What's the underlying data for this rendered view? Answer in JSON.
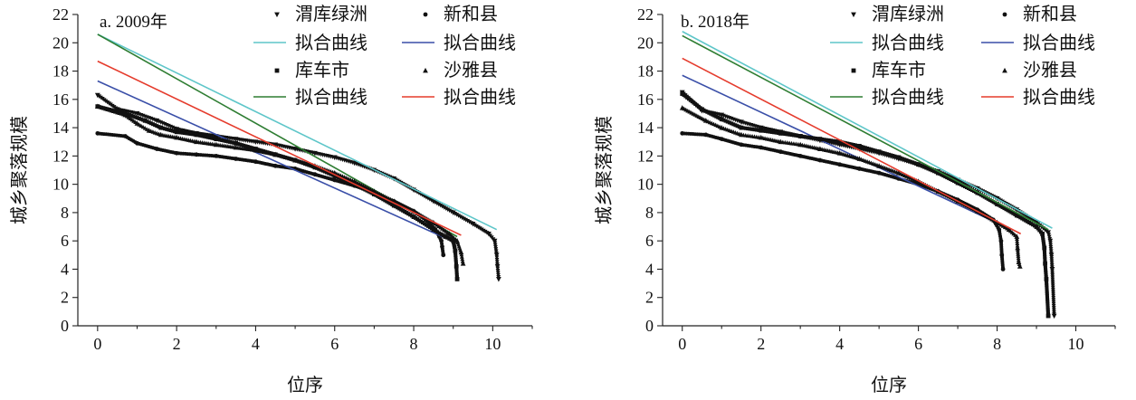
{
  "chart_data": [
    {
      "type": "scatter",
      "title": "a. 2009年",
      "xlabel": "位序",
      "ylabel": "城乡聚落规模",
      "xlim": [
        -0.5,
        11
      ],
      "ylim": [
        0,
        22
      ],
      "xticks": [
        0,
        2,
        4,
        6,
        8,
        10
      ],
      "yticks": [
        0,
        2,
        4,
        6,
        8,
        10,
        12,
        14,
        16,
        18,
        20,
        22
      ],
      "legend_position": "top-right",
      "series": [
        {
          "name": "渭库绿洲",
          "kind": "points",
          "marker": "triangle-down",
          "points": [
            [
              0,
              16.3
            ],
            [
              0.5,
              15.3
            ],
            [
              1,
              15.0
            ],
            [
              1.5,
              14.5
            ],
            [
              2,
              13.9
            ],
            [
              2.5,
              13.6
            ],
            [
              3,
              13.4
            ],
            [
              3.5,
              13.2
            ],
            [
              4,
              13.0
            ],
            [
              4.5,
              12.8
            ],
            [
              5,
              12.5
            ],
            [
              5.5,
              12.2
            ],
            [
              6,
              11.9
            ],
            [
              6.5,
              11.5
            ],
            [
              7,
              11.0
            ],
            [
              7.5,
              10.4
            ],
            [
              8,
              9.6
            ],
            [
              8.5,
              8.8
            ],
            [
              9,
              8.0
            ],
            [
              9.5,
              7.2
            ],
            [
              9.9,
              6.5
            ],
            [
              10.05,
              6.0
            ],
            [
              10.1,
              5.0
            ],
            [
              10.12,
              4.2
            ],
            [
              10.15,
              3.3
            ]
          ]
        },
        {
          "name": "拟合曲线",
          "kind": "fit",
          "color": "#5ec6c9",
          "x": [
            0,
            10.1
          ],
          "y": [
            20.6,
            6.8
          ]
        },
        {
          "name": "新和县",
          "kind": "points",
          "marker": "dot",
          "points": [
            [
              0,
              13.6
            ],
            [
              0.7,
              13.4
            ],
            [
              1,
              12.9
            ],
            [
              1.5,
              12.5
            ],
            [
              2,
              12.2
            ],
            [
              2.5,
              12.1
            ],
            [
              3,
              12.0
            ],
            [
              3.5,
              11.8
            ],
            [
              4,
              11.6
            ],
            [
              4.5,
              11.3
            ],
            [
              5,
              11.1
            ],
            [
              5.5,
              10.7
            ],
            [
              6,
              10.3
            ],
            [
              6.5,
              9.9
            ],
            [
              7,
              9.4
            ],
            [
              7.5,
              8.8
            ],
            [
              8,
              8.1
            ],
            [
              8.3,
              7.5
            ],
            [
              8.55,
              6.8
            ],
            [
              8.65,
              6.3
            ],
            [
              8.7,
              6.0
            ],
            [
              8.72,
              5.6
            ],
            [
              8.75,
              5.0
            ]
          ]
        },
        {
          "name": "拟合曲线",
          "kind": "fit",
          "color": "#3a4fa8",
          "x": [
            0,
            8.8
          ],
          "y": [
            17.3,
            6.2
          ]
        },
        {
          "name": "库车市",
          "kind": "points",
          "marker": "square",
          "points": [
            [
              0,
              15.5
            ],
            [
              0.7,
              15.0
            ],
            [
              1.2,
              14.5
            ],
            [
              1.6,
              14.0
            ],
            [
              2,
              13.7
            ],
            [
              2.5,
              13.5
            ],
            [
              3,
              13.2
            ],
            [
              3.5,
              12.9
            ],
            [
              4,
              12.5
            ],
            [
              4.5,
              12.1
            ],
            [
              5,
              11.7
            ],
            [
              5.5,
              11.2
            ],
            [
              6,
              10.6
            ],
            [
              6.5,
              10.0
            ],
            [
              7,
              9.3
            ],
            [
              7.5,
              8.5
            ],
            [
              8,
              7.7
            ],
            [
              8.5,
              6.8
            ],
            [
              8.8,
              6.3
            ],
            [
              9.0,
              6.0
            ],
            [
              9.05,
              5.3
            ],
            [
              9.08,
              4.2
            ],
            [
              9.1,
              3.3
            ]
          ]
        },
        {
          "name": "拟合曲线",
          "kind": "fit",
          "color": "#2e7d32",
          "x": [
            0,
            9.1
          ],
          "y": [
            20.6,
            6.3
          ]
        },
        {
          "name": "沙雅县",
          "kind": "points",
          "marker": "triangle-up",
          "points": [
            [
              0,
              15.5
            ],
            [
              0.7,
              14.9
            ],
            [
              1,
              14.3
            ],
            [
              1.3,
              13.8
            ],
            [
              1.6,
              13.5
            ],
            [
              2,
              13.3
            ],
            [
              2.5,
              13.0
            ],
            [
              3,
              12.8
            ],
            [
              3.5,
              12.6
            ],
            [
              4,
              12.4
            ],
            [
              4.5,
              12.1
            ],
            [
              5,
              11.7
            ],
            [
              5.5,
              11.3
            ],
            [
              6,
              10.8
            ],
            [
              6.5,
              10.2
            ],
            [
              7,
              9.5
            ],
            [
              7.5,
              8.8
            ],
            [
              8,
              8.1
            ],
            [
              8.5,
              7.3
            ],
            [
              8.9,
              6.5
            ],
            [
              9.1,
              6.0
            ],
            [
              9.2,
              5.2
            ],
            [
              9.25,
              4.4
            ]
          ]
        },
        {
          "name": "拟合曲线",
          "kind": "fit",
          "color": "#e53b2c",
          "x": [
            0,
            9.2
          ],
          "y": [
            18.7,
            6.4
          ]
        }
      ]
    },
    {
      "type": "scatter",
      "title": "b. 2018年",
      "xlabel": "位序",
      "ylabel": "城乡聚落规模",
      "xlim": [
        -0.5,
        11
      ],
      "ylim": [
        0,
        22
      ],
      "xticks": [
        0,
        2,
        4,
        6,
        8,
        10
      ],
      "yticks": [
        0,
        2,
        4,
        6,
        8,
        10,
        12,
        14,
        16,
        18,
        20,
        22
      ],
      "legend_position": "top-right",
      "series": [
        {
          "name": "渭库绿洲",
          "kind": "points",
          "marker": "triangle-down",
          "points": [
            [
              0,
              16.5
            ],
            [
              0.5,
              15.2
            ],
            [
              1,
              14.9
            ],
            [
              1.5,
              14.4
            ],
            [
              2,
              14.0
            ],
            [
              2.5,
              13.7
            ],
            [
              3,
              13.4
            ],
            [
              3.5,
              13.1
            ],
            [
              4,
              12.8
            ],
            [
              4.5,
              12.5
            ],
            [
              5,
              12.2
            ],
            [
              5.5,
              11.8
            ],
            [
              6,
              11.4
            ],
            [
              6.5,
              10.9
            ],
            [
              7,
              10.3
            ],
            [
              7.5,
              9.7
            ],
            [
              8,
              9.0
            ],
            [
              8.5,
              8.2
            ],
            [
              9,
              7.3
            ],
            [
              9.3,
              6.6
            ],
            [
              9.35,
              6.0
            ],
            [
              9.38,
              5.0
            ],
            [
              9.4,
              4.0
            ],
            [
              9.45,
              0.7
            ]
          ]
        },
        {
          "name": "拟合曲线",
          "kind": "fit",
          "color": "#5ec6c9",
          "x": [
            0,
            9.4
          ],
          "y": [
            20.8,
            6.9
          ]
        },
        {
          "name": "新和县",
          "kind": "points",
          "marker": "dot",
          "points": [
            [
              0,
              13.6
            ],
            [
              0.6,
              13.5
            ],
            [
              1,
              13.2
            ],
            [
              1.5,
              12.8
            ],
            [
              2,
              12.6
            ],
            [
              2.5,
              12.3
            ],
            [
              3,
              12.0
            ],
            [
              3.5,
              11.7
            ],
            [
              4,
              11.4
            ],
            [
              4.5,
              11.1
            ],
            [
              5,
              10.8
            ],
            [
              5.5,
              10.4
            ],
            [
              6,
              10.0
            ],
            [
              6.5,
              9.5
            ],
            [
              7,
              8.9
            ],
            [
              7.5,
              8.2
            ],
            [
              7.9,
              7.5
            ],
            [
              8.05,
              6.8
            ],
            [
              8.1,
              6.0
            ],
            [
              8.12,
              5.0
            ],
            [
              8.15,
              4.0
            ]
          ]
        },
        {
          "name": "拟合曲线",
          "kind": "fit",
          "color": "#3a4fa8",
          "x": [
            0,
            8.2
          ],
          "y": [
            17.7,
            7.0
          ]
        },
        {
          "name": "库车市",
          "kind": "points",
          "marker": "square",
          "points": [
            [
              0,
              16.4
            ],
            [
              0.5,
              15.3
            ],
            [
              1,
              14.6
            ],
            [
              1.5,
              14.0
            ],
            [
              2,
              13.8
            ],
            [
              2.5,
              13.6
            ],
            [
              3,
              13.4
            ],
            [
              3.5,
              13.2
            ],
            [
              4,
              13.0
            ],
            [
              4.5,
              12.7
            ],
            [
              5,
              12.3
            ],
            [
              5.5,
              11.9
            ],
            [
              6,
              11.4
            ],
            [
              6.5,
              10.8
            ],
            [
              7,
              10.1
            ],
            [
              7.5,
              9.4
            ],
            [
              8,
              8.6
            ],
            [
              8.5,
              7.8
            ],
            [
              9,
              7.0
            ],
            [
              9.15,
              6.5
            ],
            [
              9.2,
              5.5
            ],
            [
              9.22,
              4.4
            ],
            [
              9.25,
              3.3
            ],
            [
              9.3,
              0.7
            ]
          ]
        },
        {
          "name": "拟合曲线",
          "kind": "fit",
          "color": "#2e7d32",
          "x": [
            0,
            9.3
          ],
          "y": [
            20.5,
            6.8
          ]
        },
        {
          "name": "沙雅县",
          "kind": "points",
          "marker": "triangle-up",
          "points": [
            [
              0,
              15.4
            ],
            [
              0.6,
              14.5
            ],
            [
              1,
              14.0
            ],
            [
              1.5,
              13.5
            ],
            [
              2,
              13.3
            ],
            [
              2.5,
              13.0
            ],
            [
              3,
              12.8
            ],
            [
              3.5,
              12.5
            ],
            [
              4,
              12.2
            ],
            [
              4.5,
              11.8
            ],
            [
              5,
              11.3
            ],
            [
              5.5,
              10.8
            ],
            [
              6,
              10.2
            ],
            [
              6.5,
              9.5
            ],
            [
              7,
              8.8
            ],
            [
              7.5,
              8.1
            ],
            [
              8,
              7.3
            ],
            [
              8.3,
              6.8
            ],
            [
              8.5,
              6.3
            ],
            [
              8.52,
              5.5
            ],
            [
              8.55,
              4.5
            ],
            [
              8.58,
              4.2
            ]
          ]
        },
        {
          "name": "拟合曲线",
          "kind": "fit",
          "color": "#e53b2c",
          "x": [
            0,
            8.6
          ],
          "y": [
            18.9,
            6.5
          ]
        }
      ]
    }
  ]
}
